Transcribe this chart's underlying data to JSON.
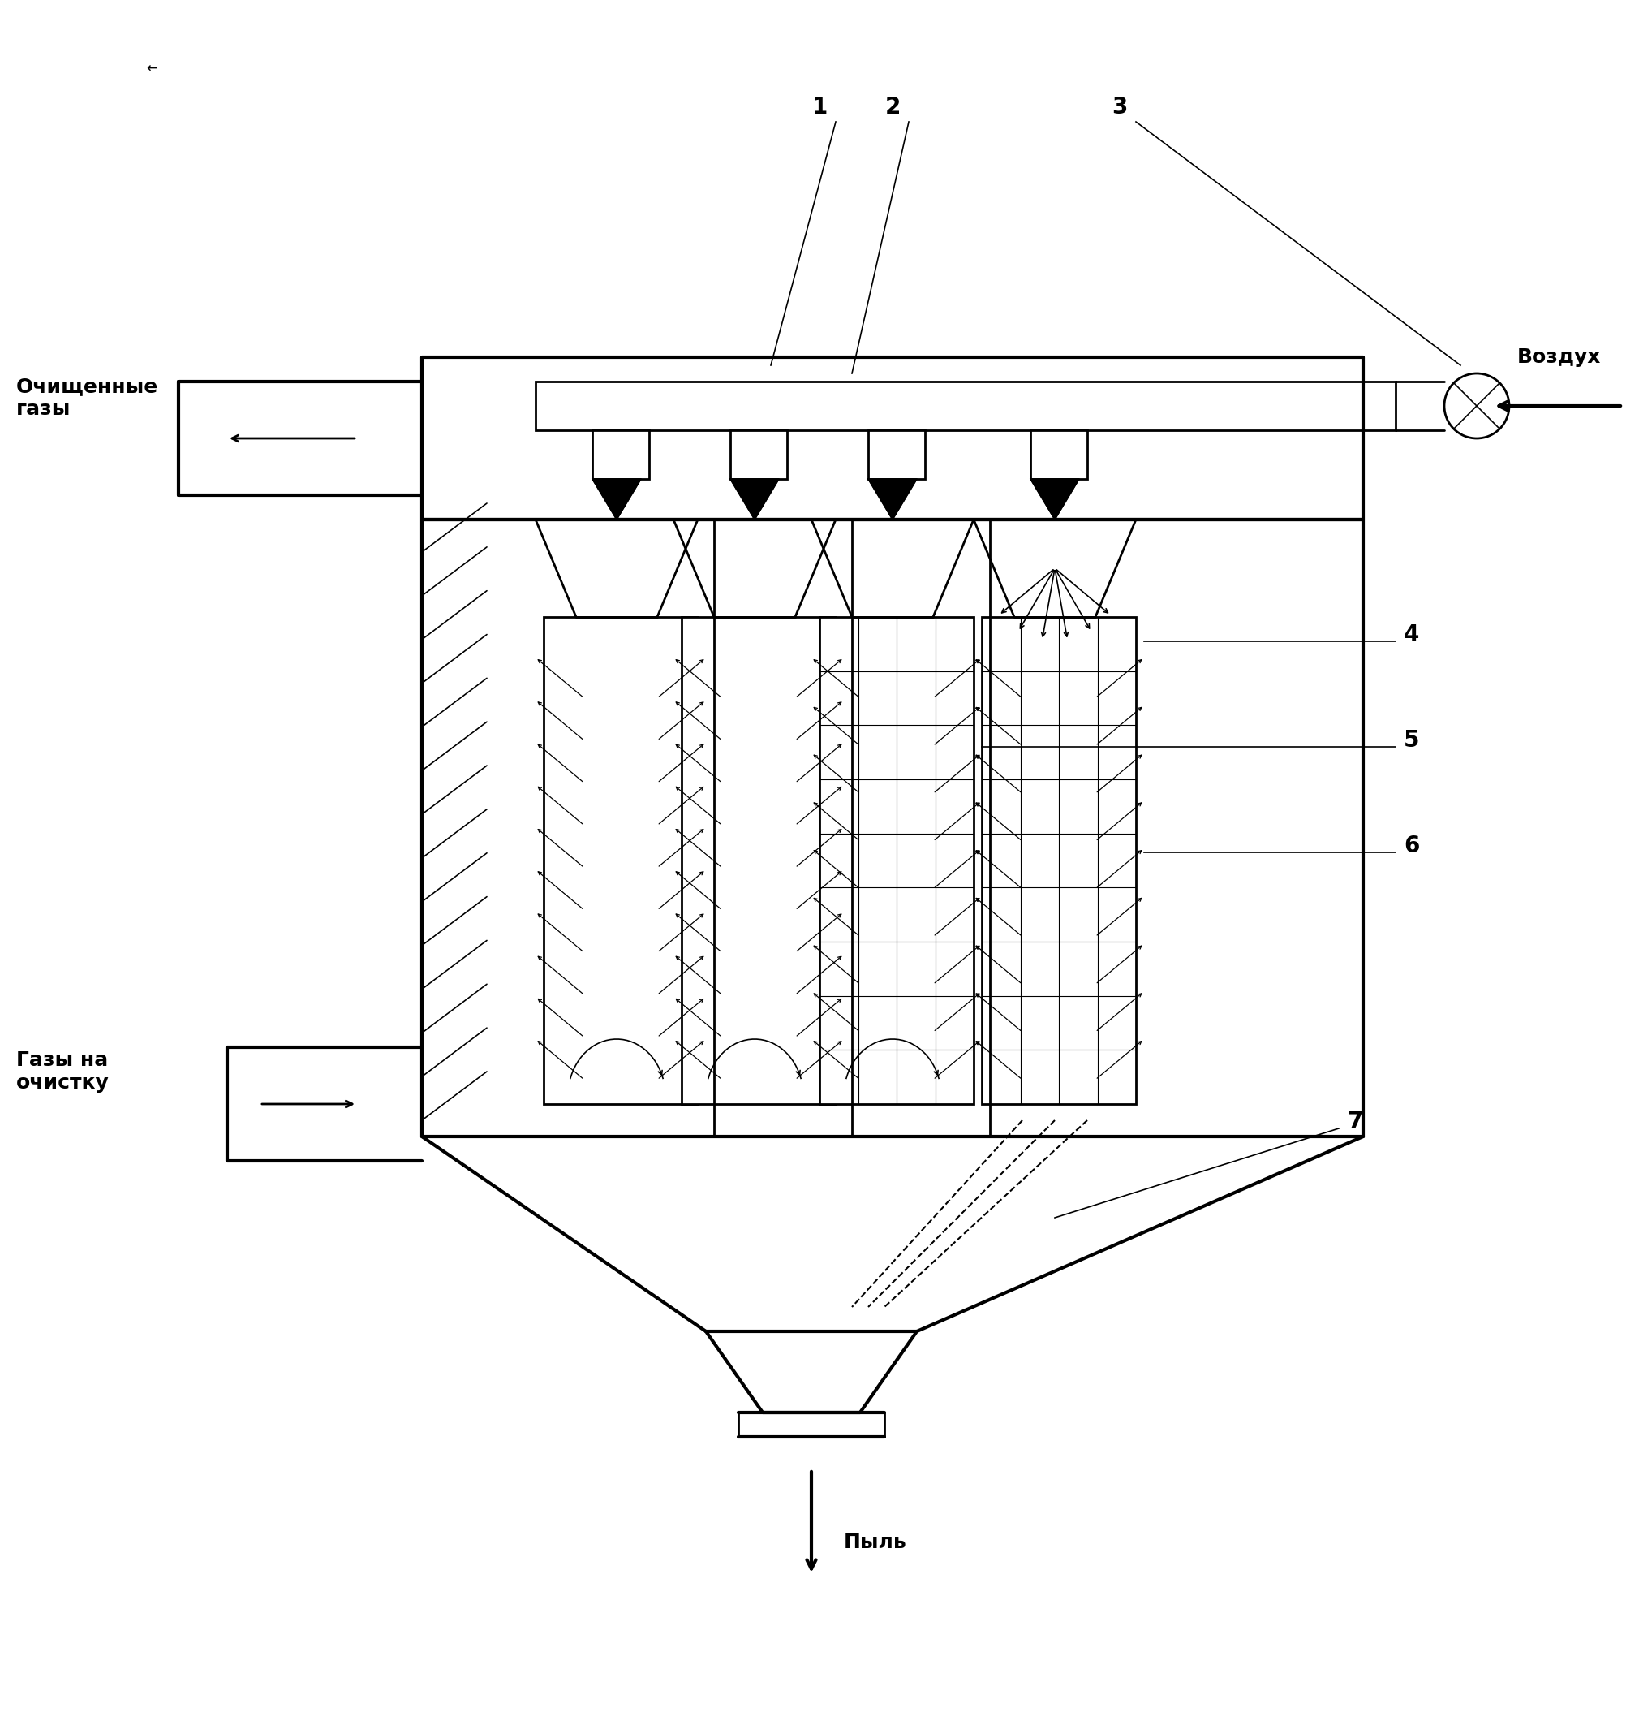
{
  "bg_color": "#ffffff",
  "line_color": "#000000",
  "fig_width": 20.2,
  "fig_height": 21.2,
  "labels": {
    "ochishennye": "Очищенные\nгазы",
    "vozdukh": "Воздух",
    "gazy_na_ochistku": "Газы на\nочистку",
    "pyl": "Пыль",
    "num1": "1",
    "num2": "2",
    "num3": "3",
    "num4": "4",
    "num5": "5",
    "num6": "6",
    "num7": "7"
  }
}
